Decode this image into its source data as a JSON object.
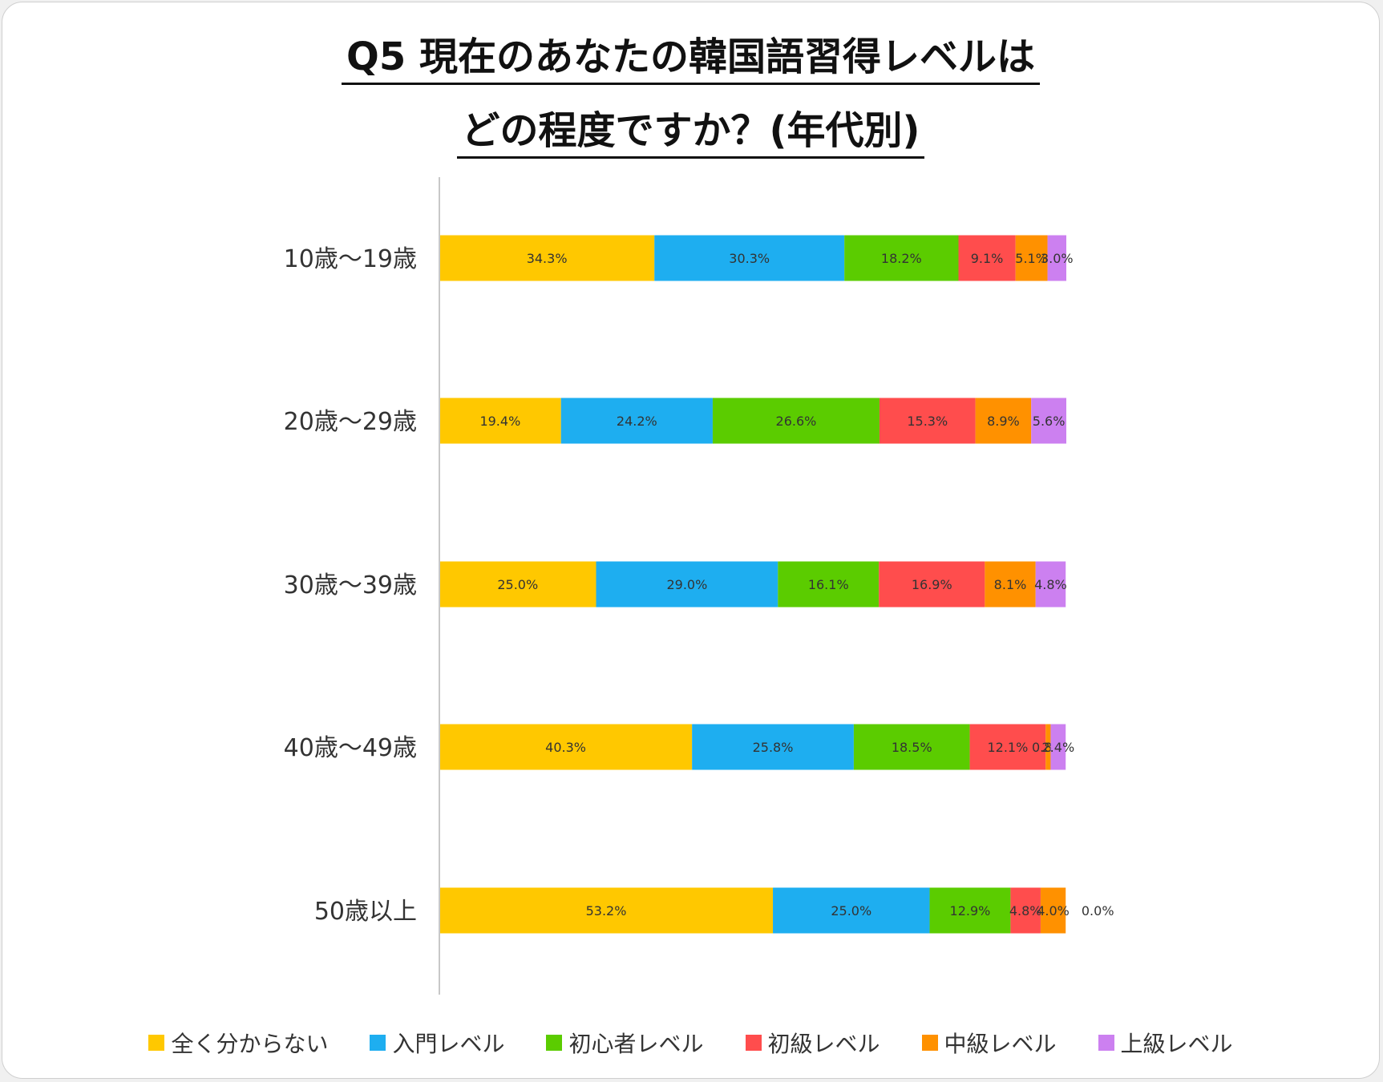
{
  "chart_data": {
    "type": "bar",
    "orientation": "horizontal",
    "stacked": true,
    "title_line1": "Q5 現在のあなたの韓国語習得レベルは",
    "title_line2": "どの程度ですか？(年代別)",
    "categories": [
      "10歳～19歳",
      "20歳～29歳",
      "30歳～39歳",
      "40歳～49歳",
      "50歳以上"
    ],
    "series": [
      {
        "name": "全く分からない",
        "color": "#FFC800",
        "values": [
          34.3,
          19.4,
          25.0,
          40.3,
          53.2
        ]
      },
      {
        "name": "入門レベル",
        "color": "#1EAEF0",
        "values": [
          30.3,
          24.2,
          29.0,
          25.8,
          25.0
        ]
      },
      {
        "name": "初心者レベル",
        "color": "#5BCC00",
        "values": [
          18.2,
          26.6,
          16.1,
          18.5,
          12.9
        ]
      },
      {
        "name": "初級レベル",
        "color": "#FF4D4D",
        "values": [
          9.1,
          15.3,
          16.9,
          12.1,
          4.8
        ]
      },
      {
        "name": "中級レベル",
        "color": "#FF9100",
        "values": [
          5.1,
          8.9,
          8.1,
          0.8,
          4.0
        ]
      },
      {
        "name": "上級レベル",
        "color": "#CC80F0",
        "values": [
          3.0,
          5.6,
          4.8,
          2.4,
          0.0
        ]
      }
    ],
    "data_labels": [
      [
        "34.3%",
        "30.3%",
        "18.2%",
        "9.1%",
        "5.1%",
        "3.0%"
      ],
      [
        "19.4%",
        "24.2%",
        "26.6%",
        "15.3%",
        "8.9%",
        "5.6%"
      ],
      [
        "25.0%",
        "29.0%",
        "16.1%",
        "16.9%",
        "8.1%",
        "4.8%"
      ],
      [
        "40.3%",
        "25.8%",
        "18.5%",
        "12.1%",
        "0.8%",
        "2.4%"
      ],
      [
        "53.2%",
        "25.0%",
        "12.9%",
        "4.8%",
        "4.0%",
        "0.0%"
      ]
    ],
    "xlim": [
      0,
      100
    ],
    "grid": false,
    "legend_position": "bottom"
  }
}
